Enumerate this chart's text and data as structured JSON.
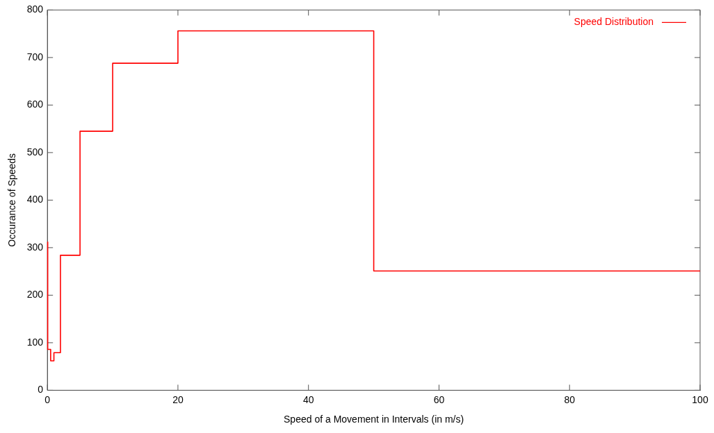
{
  "chart_data": {
    "type": "step",
    "xlabel": "Speed of a Movement in Intervals (in m/s)",
    "ylabel": "Occurance of Speeds",
    "x": [
      0,
      0.05,
      0.5,
      1,
      2,
      5,
      10,
      20,
      50,
      100
    ],
    "series": [
      {
        "name": "Speed Distribution",
        "color": "#ff0000",
        "values": [
          312,
          86,
          62,
          79,
          284,
          545,
          688,
          756,
          251,
          251
        ]
      }
    ],
    "xlim": [
      0,
      100
    ],
    "xticks": [
      0,
      20,
      40,
      60,
      80,
      100
    ],
    "ylim": [
      0,
      800
    ],
    "yticks": [
      0,
      100,
      200,
      300,
      400,
      500,
      600,
      700,
      800
    ],
    "grid": false,
    "legend": "top right",
    "marker": "none",
    "line_style": "solid"
  }
}
